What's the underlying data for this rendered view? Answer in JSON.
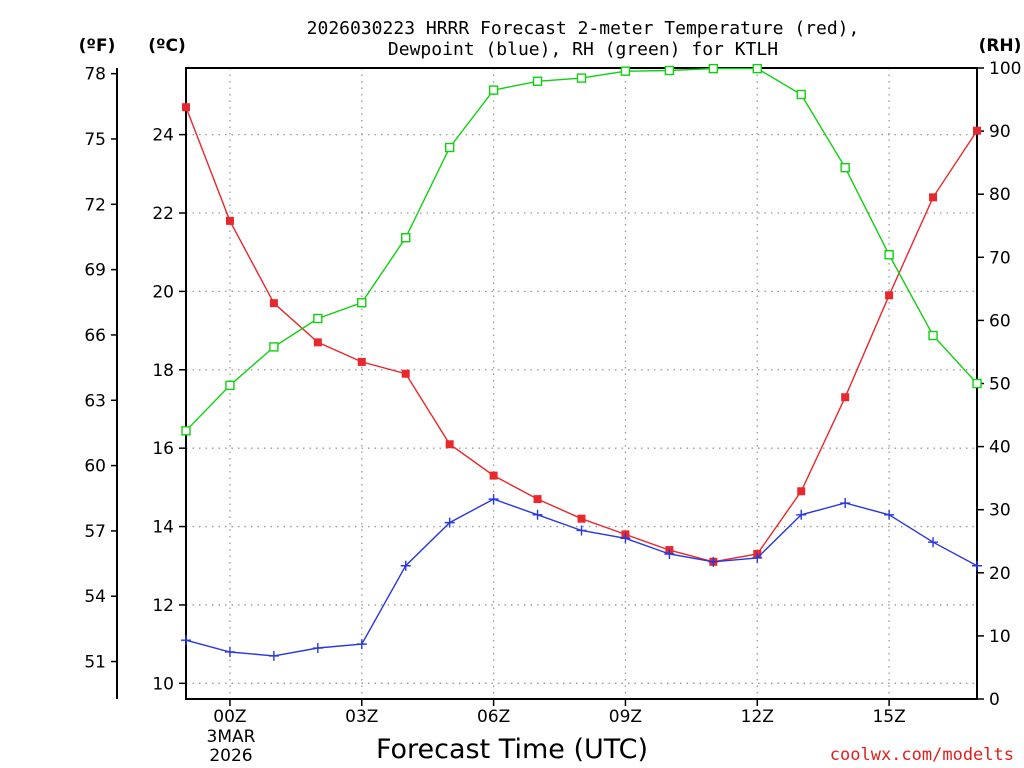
{
  "chart_data": {
    "type": "line",
    "title_line1": "2026030223 HRRR Forecast 2-meter Temperature (red),",
    "title_line2": "Dewpoint (blue), RH (green) for KTLH",
    "xlabel": "Forecast Time (UTC)",
    "credit": "coolwx.com/modelts",
    "date_label_line1": "3MAR",
    "date_label_line2": "2026",
    "units": {
      "fahrenheit": "(ºF)",
      "celsius": "(ºC)",
      "rh": "(RH)"
    },
    "x": [
      -1,
      0,
      1,
      2,
      3,
      4,
      5,
      6,
      7,
      8,
      9,
      10,
      11,
      12,
      13,
      14,
      15,
      16,
      17
    ],
    "xlim": [
      -1,
      17
    ],
    "x_ticks": [
      {
        "x": 0,
        "label": "00Z"
      },
      {
        "x": 3,
        "label": "03Z"
      },
      {
        "x": 6,
        "label": "06Z"
      },
      {
        "x": 9,
        "label": "09Z"
      },
      {
        "x": 12,
        "label": "12Z"
      },
      {
        "x": 15,
        "label": "15Z"
      }
    ],
    "ylim_celsius": [
      9.6,
      25.7
    ],
    "y_ticks_celsius": [
      "10",
      "12",
      "14",
      "16",
      "18",
      "20",
      "22",
      "24"
    ],
    "y_ticks_fahrenheit": [
      "51",
      "54",
      "57",
      "60",
      "63",
      "66",
      "69",
      "72",
      "75",
      "78"
    ],
    "ylim_rh": [
      0,
      100
    ],
    "y_ticks_rh": [
      "0",
      "10",
      "20",
      "30",
      "40",
      "50",
      "60",
      "70",
      "80",
      "90",
      "100"
    ],
    "series": [
      {
        "name": "Temperature",
        "axis": "celsius",
        "color": "#e8282c",
        "marker": "filled-square",
        "values": [
          24.7,
          21.8,
          19.7,
          18.7,
          18.2,
          17.9,
          16.1,
          15.3,
          14.7,
          14.2,
          13.8,
          13.4,
          13.1,
          13.3,
          14.9,
          17.3,
          19.9,
          22.4,
          24.1
        ]
      },
      {
        "name": "Dewpoint",
        "axis": "celsius",
        "color": "#2838e0",
        "marker": "plus",
        "values": [
          11.1,
          10.8,
          10.7,
          10.9,
          11.0,
          13.0,
          14.1,
          14.7,
          14.3,
          13.9,
          13.7,
          13.3,
          13.1,
          13.2,
          14.3,
          14.6,
          14.3,
          13.6,
          13.0
        ]
      },
      {
        "name": "RH",
        "axis": "rh",
        "color": "#10d010",
        "marker": "open-square",
        "values": [
          42.5,
          49.7,
          55.8,
          60.3,
          62.8,
          73.1,
          87.4,
          96.5,
          97.9,
          98.4,
          99.5,
          99.6,
          99.9,
          99.9,
          95.8,
          84.2,
          70.4,
          57.6,
          50.0
        ]
      }
    ]
  }
}
